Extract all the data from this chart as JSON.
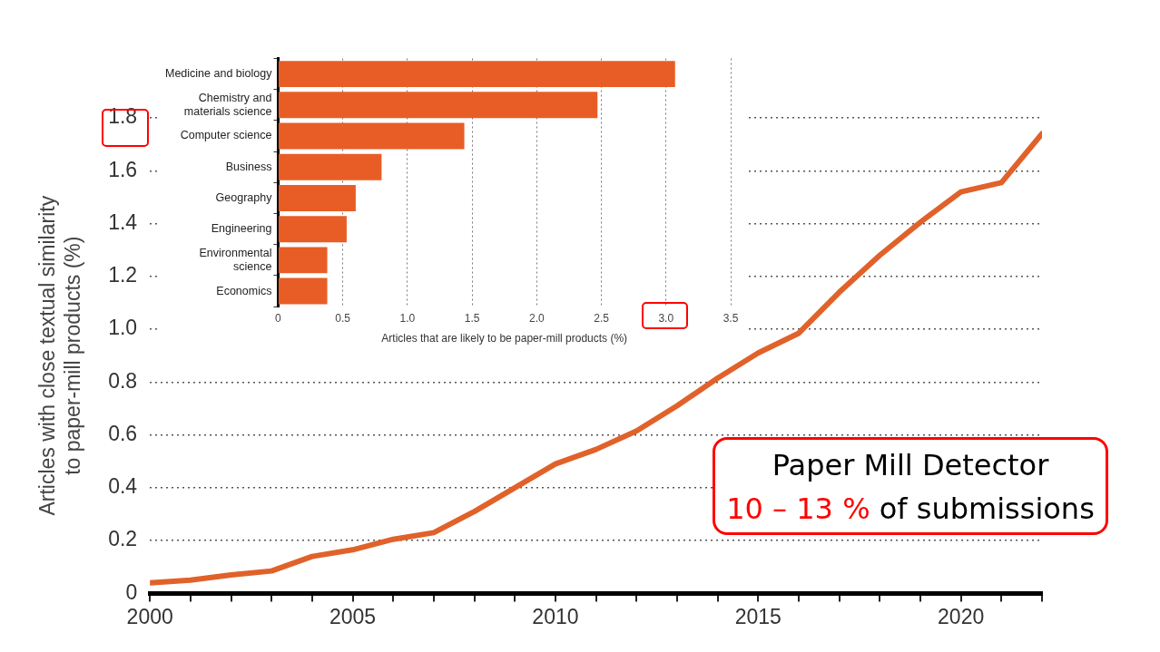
{
  "chart_data": [
    {
      "type": "line",
      "ylabel": "Articles with close textual similarity\nto paper-mill products (%)",
      "x": [
        2000,
        2001,
        2002,
        2003,
        2004,
        2005,
        2006,
        2007,
        2008,
        2009,
        2010,
        2011,
        2012,
        2013,
        2014,
        2015,
        2016,
        2017,
        2018,
        2019,
        2020,
        2021,
        2022
      ],
      "series": [
        {
          "color": "#e0622a",
          "values": [
            0.04,
            0.05,
            0.07,
            0.085,
            0.14,
            0.165,
            0.205,
            0.23,
            0.31,
            0.4,
            0.49,
            0.545,
            0.615,
            0.71,
            0.815,
            0.91,
            0.985,
            1.14,
            1.28,
            1.405,
            1.52,
            1.555,
            1.74
          ]
        }
      ],
      "xlim": [
        2000,
        2022
      ],
      "xticks": [
        2000,
        {
          "value": 2001,
          "label": null
        },
        {
          "value": 2002,
          "label": null
        },
        {
          "value": 2003,
          "label": null
        },
        {
          "value": 2004,
          "label": null
        },
        2005,
        {
          "value": 2006,
          "label": null
        },
        {
          "value": 2007,
          "label": null
        },
        {
          "value": 2008,
          "label": null
        },
        {
          "value": 2009,
          "label": null
        },
        2010,
        {
          "value": 2011,
          "label": null
        },
        {
          "value": 2012,
          "label": null
        },
        {
          "value": 2013,
          "label": null
        },
        {
          "value": 2014,
          "label": null
        },
        2015,
        {
          "value": 2016,
          "label": null
        },
        {
          "value": 2017,
          "label": null
        },
        {
          "value": 2018,
          "label": null
        },
        {
          "value": 2019,
          "label": null
        },
        2020,
        {
          "value": 2021,
          "label": null
        },
        {
          "value": 2022,
          "label": null
        }
      ],
      "ylim": [
        0,
        1.8
      ],
      "yticks": [
        0,
        0.2,
        0.4,
        0.6,
        0.8,
        {
          "value": 1,
          "label": "1.0"
        },
        1.2,
        1.4,
        1.6,
        1.8
      ],
      "grid": "y",
      "legend": false,
      "marker": "none",
      "line_style": "solid",
      "annotations": [
        "Paper Mill Detector",
        "10 – 13 %",
        "of submissions"
      ]
    },
    {
      "type": "bar",
      "orientation": "horizontal",
      "xlabel": "Articles that are likely to be paper-mill products (%)",
      "categories": [
        "Medicine and biology",
        "Chemistry and\nmaterials science",
        "Computer science",
        "Business",
        "Geography",
        "Engineering",
        "Environmental\nscience",
        "Economics"
      ],
      "values": [
        3.07,
        2.47,
        1.44,
        0.8,
        0.6,
        0.53,
        0.38,
        0.38
      ],
      "color": "#e85d25",
      "xlim": [
        0,
        3.5
      ],
      "xticks": [
        0,
        0.5,
        {
          "value": 1,
          "label": "1.0"
        },
        1.5,
        {
          "value": 2,
          "label": "2.0"
        },
        2.5,
        {
          "value": 3,
          "label": "3.0"
        },
        3.5
      ],
      "grid": "x",
      "legend": false
    }
  ]
}
